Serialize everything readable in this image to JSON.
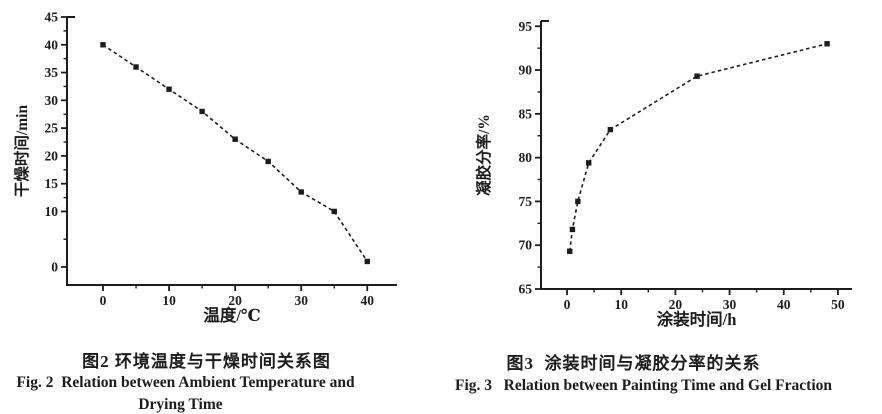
{
  "page": {
    "background": "#ffffff",
    "ink": "#1c1c1c"
  },
  "chart_data": [
    {
      "id": "fig2",
      "type": "scatter",
      "title": "图2 环境温度与干燥时间关系图",
      "caption_en": "Fig. 2  Relation between Ambient Temperature and",
      "caption_en_line2": "Drying Time",
      "xlabel": "温度/℃",
      "ylabel": "干燥时间/min",
      "x": [
        0,
        5,
        10,
        15,
        20,
        25,
        30,
        35,
        40
      ],
      "y": [
        40,
        36,
        32,
        28,
        23,
        19,
        13.5,
        10,
        1
      ],
      "xticks": [
        0,
        10,
        20,
        30,
        40
      ],
      "yticks": [
        0,
        10,
        15,
        20,
        25,
        30,
        35,
        40,
        45
      ],
      "xlim": [
        -5.45,
        44.5
      ],
      "ylim": [
        -3.24,
        45
      ],
      "line_style": "dashed",
      "marker": "filled-square",
      "grid": false,
      "legend": "none"
    },
    {
      "id": "fig3",
      "type": "scatter",
      "title": "图3  涂装时间与凝胶分率的关系",
      "caption_en": "Fig. 3   Relation between Painting Time and Gel Fraction",
      "caption_en_line2": "",
      "xlabel": "涂装时间/h",
      "ylabel": "凝胶分率/%",
      "x": [
        0.5,
        1,
        2,
        4,
        8,
        24,
        48
      ],
      "y": [
        69.3,
        71.8,
        75,
        79.4,
        83.2,
        89.3,
        93
      ],
      "xticks": [
        0,
        10,
        20,
        30,
        40,
        50
      ],
      "yticks": [
        65,
        70,
        75,
        80,
        85,
        90,
        95
      ],
      "xlim": [
        -4.8,
        52.6
      ],
      "ylim": [
        65,
        95.6
      ],
      "line_style": "dashed",
      "marker": "filled-square",
      "grid": false,
      "legend": "none"
    }
  ]
}
